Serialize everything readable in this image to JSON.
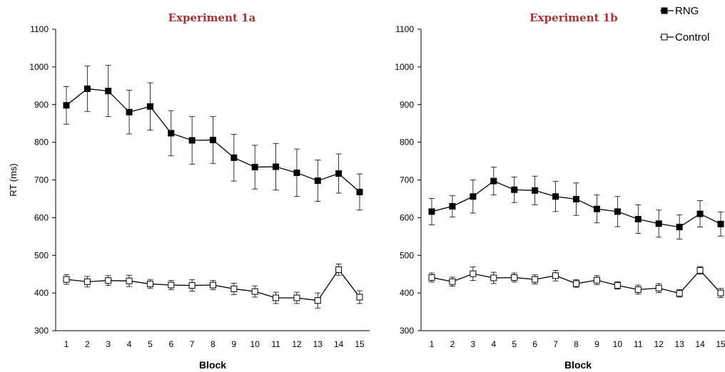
{
  "chart_data": [
    {
      "type": "line",
      "title": "Experiment 1a",
      "xlabel": "Block",
      "ylabel": "RT (ms)",
      "ylim": [
        300,
        1100
      ],
      "yticks": [
        300,
        400,
        500,
        600,
        700,
        800,
        900,
        1000,
        1100
      ],
      "x": [
        1,
        2,
        3,
        4,
        5,
        6,
        7,
        8,
        9,
        10,
        11,
        12,
        13,
        14,
        15
      ],
      "error_bars": true,
      "grid": false,
      "series": [
        {
          "name": "RNG",
          "marker": "filled-square",
          "color": "#000000",
          "values": [
            898,
            942,
            936,
            880,
            895,
            824,
            805,
            806,
            759,
            734,
            735,
            719,
            698,
            717,
            668
          ],
          "errors": [
            50,
            60,
            68,
            58,
            63,
            60,
            63,
            62,
            62,
            58,
            62,
            63,
            55,
            52,
            48
          ]
        },
        {
          "name": "Control",
          "marker": "open-square",
          "color": "#000000",
          "values": [
            436,
            430,
            433,
            432,
            424,
            421,
            420,
            421,
            411,
            404,
            387,
            387,
            380,
            462,
            389
          ],
          "errors": [
            13,
            14,
            13,
            15,
            12,
            12,
            15,
            12,
            15,
            15,
            15,
            15,
            20,
            15,
            17
          ]
        }
      ]
    },
    {
      "type": "line",
      "title": "Experiment 1b",
      "xlabel": "Block",
      "ylabel": "",
      "ylim": [
        300,
        1100
      ],
      "yticks": [
        300,
        400,
        500,
        600,
        700,
        800,
        900,
        1000,
        1100
      ],
      "x": [
        1,
        2,
        3,
        4,
        5,
        6,
        7,
        8,
        9,
        10,
        11,
        12,
        13,
        14,
        15
      ],
      "error_bars": true,
      "grid": false,
      "legend_position": "top-right",
      "series": [
        {
          "name": "RNG",
          "marker": "filled-square",
          "color": "#000000",
          "values": [
            616,
            630,
            656,
            697,
            674,
            672,
            656,
            649,
            623,
            616,
            596,
            584,
            575,
            610,
            583
          ],
          "errors": [
            35,
            28,
            44,
            37,
            34,
            38,
            40,
            43,
            37,
            40,
            38,
            36,
            32,
            35,
            32
          ]
        },
        {
          "name": "Control",
          "marker": "open-square",
          "color": "#000000",
          "values": [
            441,
            430,
            451,
            440,
            441,
            436,
            446,
            425,
            434,
            420,
            409,
            413,
            399,
            460,
            400
          ],
          "errors": [
            12,
            12,
            18,
            15,
            12,
            12,
            14,
            10,
            12,
            10,
            12,
            12,
            10,
            10,
            12
          ]
        }
      ]
    }
  ]
}
